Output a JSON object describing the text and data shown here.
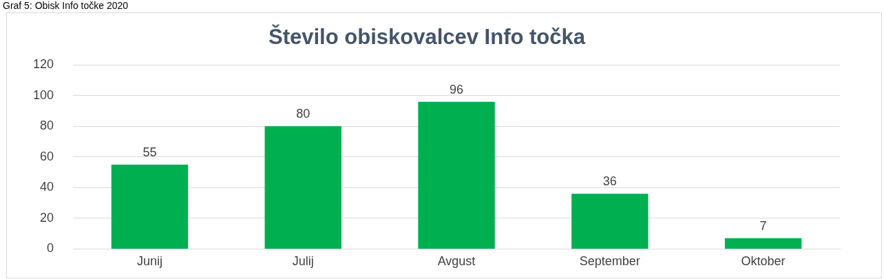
{
  "chart_data": {
    "type": "bar",
    "title": "Število obiskovalcev Info točka",
    "annotations": [
      "Graf 5: Obisk Info točke 2020"
    ],
    "categories": [
      "Junij",
      "Julij",
      "Avgust",
      "September",
      "Oktober"
    ],
    "values": [
      55,
      80,
      96,
      36,
      7
    ],
    "color": "#00b050",
    "ylim": [
      0,
      120
    ],
    "yticks": [
      0,
      20,
      40,
      60,
      80,
      100,
      120
    ],
    "grid": "y",
    "data_labels": true,
    "legend": false
  }
}
